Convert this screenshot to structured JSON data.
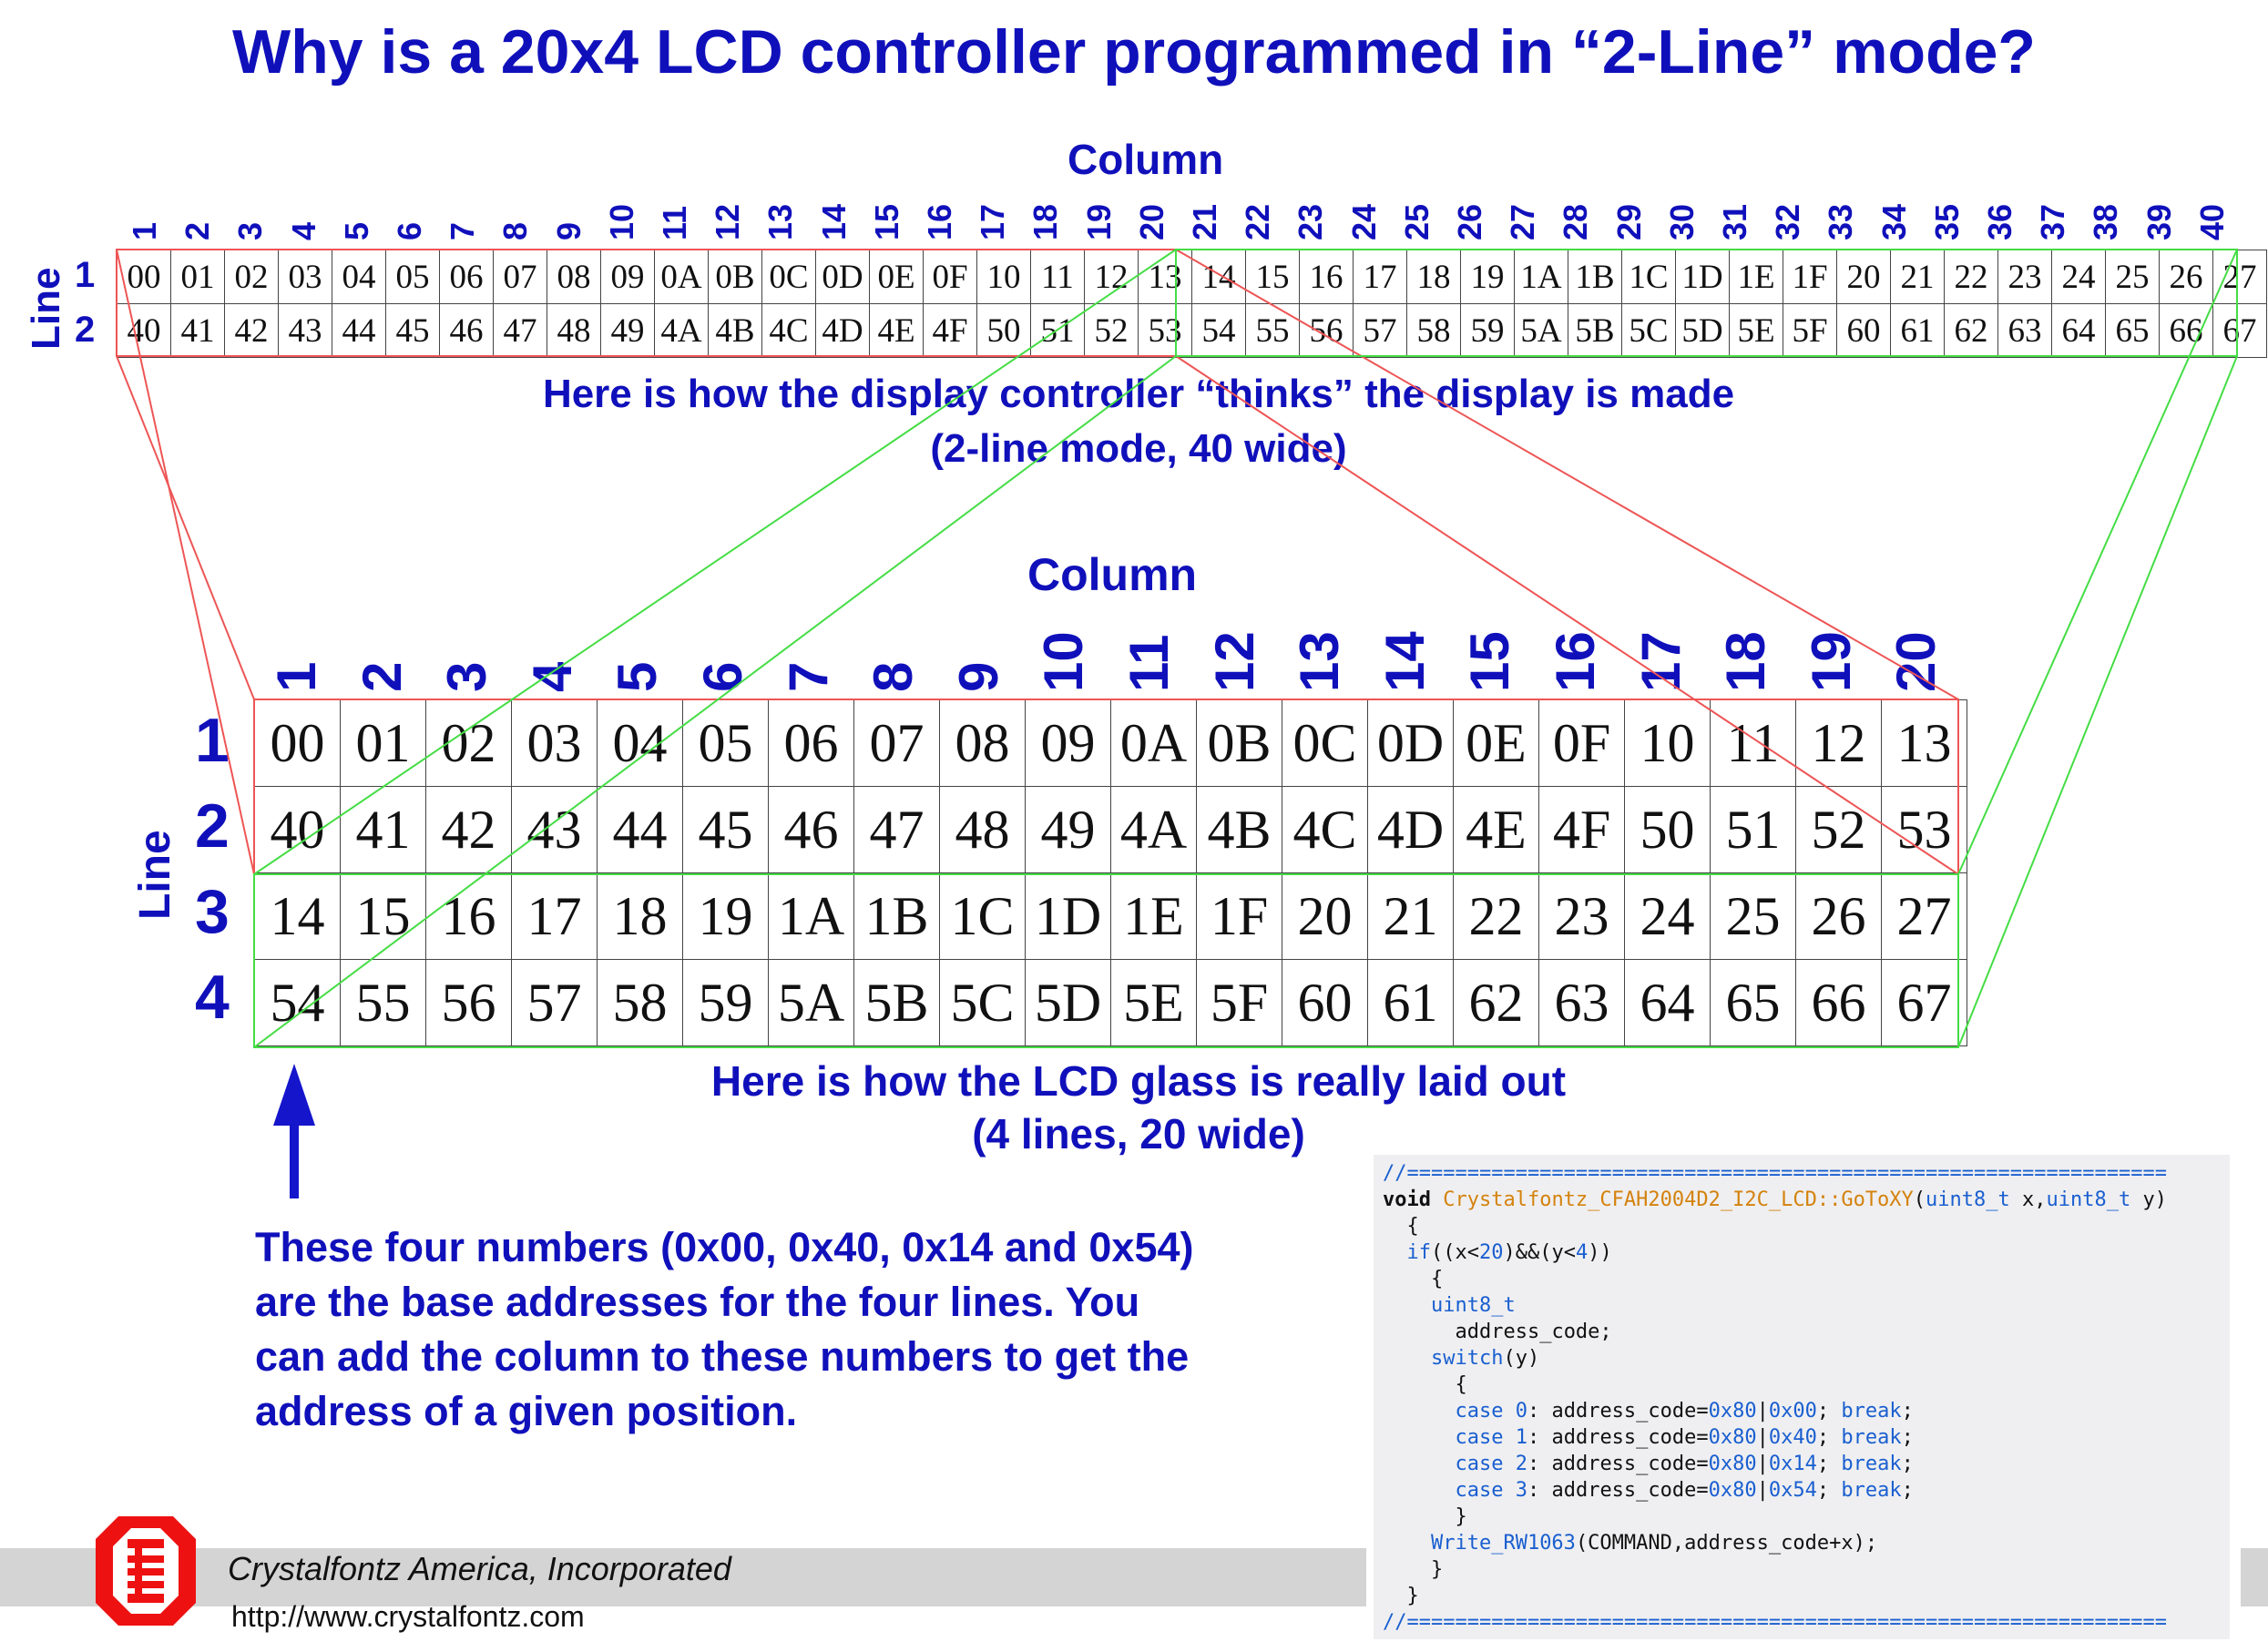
{
  "title": "Why is a 20x4 LCD controller programmed in “2-Line” mode?",
  "top_section": {
    "column_label": "Column",
    "line_label": "Line",
    "column_numbers": [
      "1",
      "2",
      "3",
      "4",
      "5",
      "6",
      "7",
      "8",
      "9",
      "10",
      "11",
      "12",
      "13",
      "14",
      "15",
      "16",
      "17",
      "18",
      "19",
      "20",
      "21",
      "22",
      "23",
      "24",
      "25",
      "26",
      "27",
      "28",
      "29",
      "30",
      "31",
      "32",
      "33",
      "34",
      "35",
      "36",
      "37",
      "38",
      "39",
      "40"
    ],
    "line_numbers": [
      "1",
      "2"
    ],
    "rows": [
      [
        "00",
        "01",
        "02",
        "03",
        "04",
        "05",
        "06",
        "07",
        "08",
        "09",
        "0A",
        "0B",
        "0C",
        "0D",
        "0E",
        "0F",
        "10",
        "11",
        "12",
        "13",
        "14",
        "15",
        "16",
        "17",
        "18",
        "19",
        "1A",
        "1B",
        "1C",
        "1D",
        "1E",
        "1F",
        "20",
        "21",
        "22",
        "23",
        "24",
        "25",
        "26",
        "27"
      ],
      [
        "40",
        "41",
        "42",
        "43",
        "44",
        "45",
        "46",
        "47",
        "48",
        "49",
        "4A",
        "4B",
        "4C",
        "4D",
        "4E",
        "4F",
        "50",
        "51",
        "52",
        "53",
        "54",
        "55",
        "56",
        "57",
        "58",
        "59",
        "5A",
        "5B",
        "5C",
        "5D",
        "5E",
        "5F",
        "60",
        "61",
        "62",
        "63",
        "64",
        "65",
        "66",
        "67"
      ]
    ],
    "caption_line1": "Here is how the display controller “thinks” the display is made",
    "caption_line2": "(2-line mode, 40 wide)"
  },
  "bottom_section": {
    "column_label": "Column",
    "line_label": "Line",
    "column_numbers": [
      "1",
      "2",
      "3",
      "4",
      "5",
      "6",
      "7",
      "8",
      "9",
      "10",
      "11",
      "12",
      "13",
      "14",
      "15",
      "16",
      "17",
      "18",
      "19",
      "20"
    ],
    "line_numbers": [
      "1",
      "2",
      "3",
      "4"
    ],
    "rows": [
      [
        "00",
        "01",
        "02",
        "03",
        "04",
        "05",
        "06",
        "07",
        "08",
        "09",
        "0A",
        "0B",
        "0C",
        "0D",
        "0E",
        "0F",
        "10",
        "11",
        "12",
        "13"
      ],
      [
        "40",
        "41",
        "42",
        "43",
        "44",
        "45",
        "46",
        "47",
        "48",
        "49",
        "4A",
        "4B",
        "4C",
        "4D",
        "4E",
        "4F",
        "50",
        "51",
        "52",
        "53"
      ],
      [
        "14",
        "15",
        "16",
        "17",
        "18",
        "19",
        "1A",
        "1B",
        "1C",
        "1D",
        "1E",
        "1F",
        "20",
        "21",
        "22",
        "23",
        "24",
        "25",
        "26",
        "27"
      ],
      [
        "54",
        "55",
        "56",
        "57",
        "58",
        "59",
        "5A",
        "5B",
        "5C",
        "5D",
        "5E",
        "5F",
        "60",
        "61",
        "62",
        "63",
        "64",
        "65",
        "66",
        "67"
      ]
    ],
    "caption_line1": "Here is how the LCD glass is really laid out",
    "caption_line2": "(4 lines, 20 wide)"
  },
  "explanation": [
    "These four numbers (0x00, 0x40, 0x14 and 0x54)",
    "are the base addresses for the four lines. You",
    "can add the column to these numbers to get the",
    "address of a given position."
  ],
  "code": {
    "separator": "//===============================================================",
    "signature_void": "void",
    "signature_fn": "Crystalfontz_CFAH2004D2_I2C_LCD::GoToXY",
    "signature_type1": "uint8_t",
    "signature_x": " x,",
    "signature_type2": "uint8_t",
    "signature_y": " y)",
    "open1": "{",
    "if_kw": "if",
    "if_a": "((x<",
    "if_n1": "20",
    "if_b": ")&&(y<",
    "if_n2": "4",
    "if_c": "))",
    "open2": "{",
    "type_line": "uint8_t",
    "decl": "address_code;",
    "switch_kw": "switch",
    "switch_arg": "(y)",
    "open3": "{",
    "cases": [
      {
        "kw": "case",
        "num": "0",
        "mid": ": address_code=",
        "base": "0x80",
        "pipe": "|",
        "addr": "0x00",
        "semi": ";",
        "brk": "break",
        "end": ";"
      },
      {
        "kw": "case",
        "num": "1",
        "mid": ": address_code=",
        "base": "0x80",
        "pipe": "|",
        "addr": "0x40",
        "semi": ";",
        "brk": "break",
        "end": ";"
      },
      {
        "kw": "case",
        "num": "2",
        "mid": ": address_code=",
        "base": "0x80",
        "pipe": "|",
        "addr": "0x14",
        "semi": ";",
        "brk": "break",
        "end": ";"
      },
      {
        "kw": "case",
        "num": "3",
        "mid": ": address_code=",
        "base": "0x80",
        "pipe": "|",
        "addr": "0x54",
        "semi": ";",
        "brk": "break",
        "end": ";"
      }
    ],
    "close3": "}",
    "write_fn": "Write_RW1063",
    "write_args": "(COMMAND,address_code+x);",
    "close2": "}",
    "close1": "}"
  },
  "footer": {
    "company": "Crystalfontz America, Incorporated",
    "url": "http://www.crystalfontz.com"
  },
  "colors": {
    "text_blue": "#1010bb",
    "red_line": "#ee5555",
    "green_line": "#44dd44",
    "arrow_blue": "#1515cc"
  }
}
